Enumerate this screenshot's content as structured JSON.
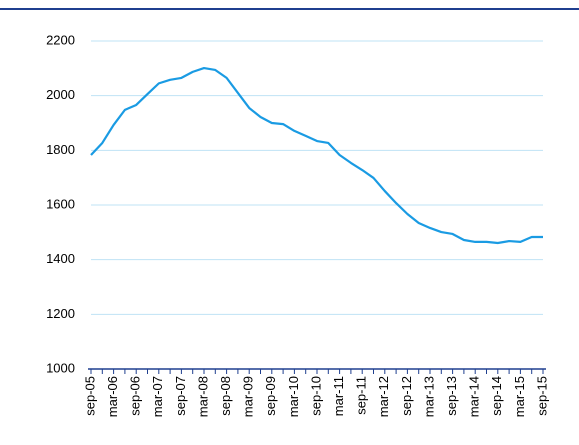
{
  "chart_data": {
    "type": "line",
    "categories": [
      "sep-05",
      null,
      "mar-06",
      null,
      "sep-06",
      null,
      "mar-07",
      null,
      "sep-07",
      null,
      "mar-08",
      null,
      "sep-08",
      null,
      "mar-09",
      null,
      "sep-09",
      null,
      "mar-10",
      null,
      "sep-10",
      null,
      "mar-11",
      null,
      "sep-11",
      null,
      "mar-12",
      null,
      "sep-12",
      null,
      "mar-13",
      null,
      "sep-13",
      null,
      "mar-14",
      null,
      "sep-14",
      null,
      "mar-15",
      null,
      "sep-15"
    ],
    "values": [
      1783,
      1827,
      1893,
      1948,
      1966,
      2006,
      2045,
      2058,
      2065,
      2087,
      2101,
      2094,
      2065,
      2010,
      1955,
      1922,
      1900,
      1896,
      1871,
      1853,
      1834,
      1827,
      1783,
      1754,
      1728,
      1699,
      1651,
      1607,
      1567,
      1534,
      1516,
      1501,
      1494,
      1472,
      1465,
      1465,
      1461,
      1468,
      1465,
      1483,
      1483
    ],
    "color": "#1a9be3",
    "ylim": [
      1000,
      2200
    ],
    "yticks": [
      1000,
      1200,
      1400,
      1600,
      1800,
      2000,
      2200
    ],
    "grid": true
  }
}
